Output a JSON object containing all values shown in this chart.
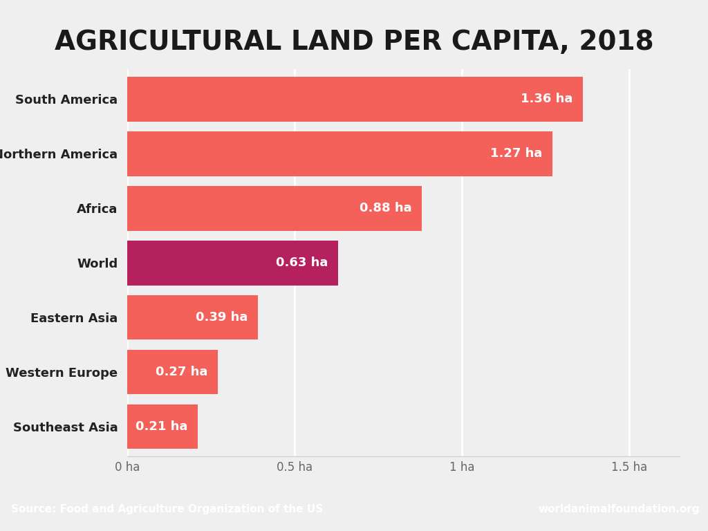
{
  "title": "AGRICULTURAL LAND PER CAPITA, 2018",
  "categories": [
    "South America",
    "Northern America",
    "Africa",
    "World",
    "Eastern Asia",
    "Western Europe",
    "Southeast Asia"
  ],
  "values": [
    1.36,
    1.27,
    0.88,
    0.63,
    0.39,
    0.27,
    0.21
  ],
  "labels": [
    "1.36 ha",
    "1.27 ha",
    "0.88 ha",
    "0.63 ha",
    "0.39 ha",
    "0.27 ha",
    "0.21 ha"
  ],
  "bar_colors": [
    "#f4615a",
    "#f4615a",
    "#f4615a",
    "#b5205e",
    "#f4615a",
    "#f4615a",
    "#f4615a"
  ],
  "background_color": "#efefef",
  "plot_bg_color": "#efefef",
  "title_fontsize": 28,
  "title_fontweight": "bold",
  "xlim": [
    0,
    1.65
  ],
  "xtick_labels": [
    "0 ha",
    "0.5 ha",
    "1 ha",
    "1.5 ha"
  ],
  "xtick_values": [
    0,
    0.5,
    1.0,
    1.5
  ],
  "footer_left": "Source: Food and Agriculture Organization of the US",
  "footer_right": "worldanimalfoundation.org",
  "footer_bg_color": "#f4615a",
  "footer_text_color": "#ffffff",
  "label_text_color": "#ffffff",
  "ylabel_text_color": "#222222",
  "bar_height": 0.82,
  "grid_color": "#ffffff",
  "spine_color": "#cccccc"
}
